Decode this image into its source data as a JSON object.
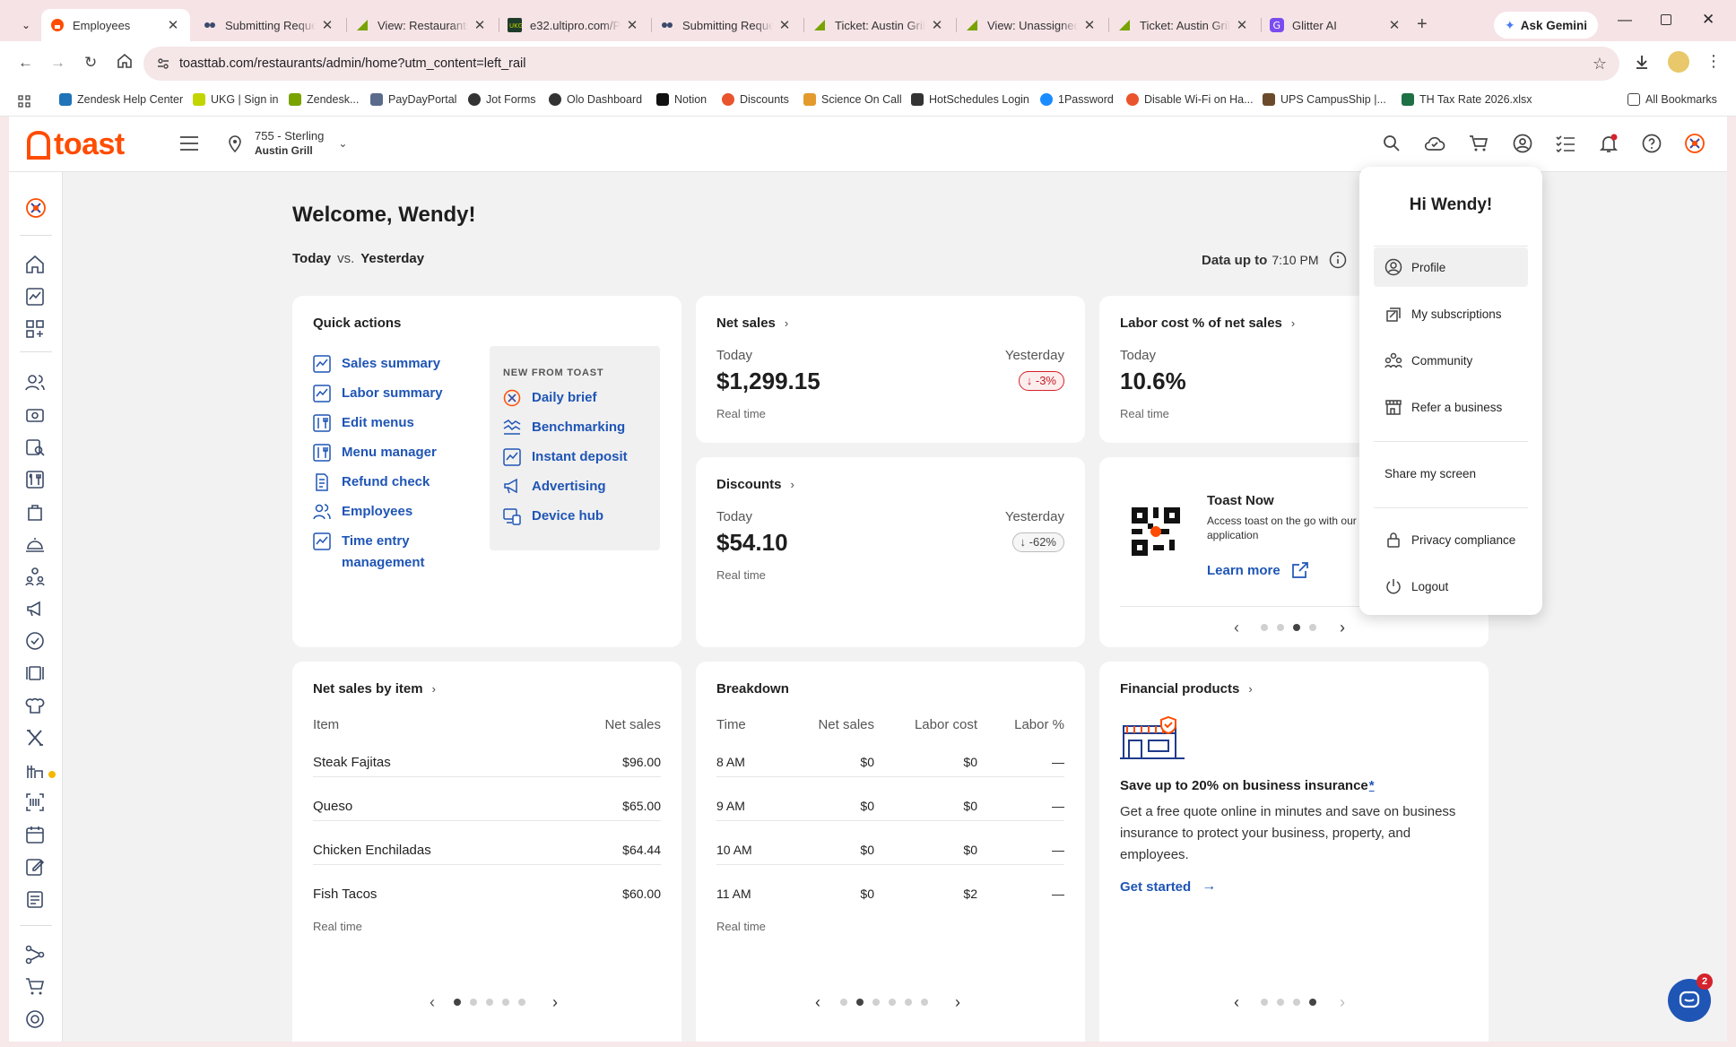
{
  "browser": {
    "tabs": [
      {
        "title": "Employees",
        "icon": "toast-favicon",
        "active": true
      },
      {
        "title": "Submitting Reque",
        "icon": "gear-favicon"
      },
      {
        "title": "View: Restaurants",
        "icon": "zendesk-favicon"
      },
      {
        "title": "e32.ultipro.com/Pi",
        "icon": "ukg-favicon"
      },
      {
        "title": "Submitting Reque",
        "icon": "gear-favicon"
      },
      {
        "title": "Ticket: Austin Grill",
        "icon": "zendesk-favicon"
      },
      {
        "title": "View: Unassigned",
        "icon": "zendesk-favicon"
      },
      {
        "title": "Ticket: Austin Grill",
        "icon": "zendesk-favicon"
      },
      {
        "title": "Glitter AI",
        "icon": "glitter-favicon"
      }
    ],
    "ask_gemini": "Ask Gemini",
    "url": "toasttab.com/restaurants/admin/home?utm_content=left_rail",
    "bookmarks": [
      {
        "label": "Zendesk Help Center",
        "color": "#1f73b7"
      },
      {
        "label": "UKG | Sign in",
        "color": "#c2d500"
      },
      {
        "label": "Zendesk...",
        "color": "#78a300"
      },
      {
        "label": "PayDayPortal",
        "color": "#5a6b8c"
      },
      {
        "label": "Jot Forms",
        "color": "#333333"
      },
      {
        "label": "Olo Dashboard",
        "color": "#333333"
      },
      {
        "label": "Notion",
        "color": "#111111"
      },
      {
        "label": "Discounts",
        "color": "#e9542c"
      },
      {
        "label": "Science On Call",
        "color": "#e39b2d"
      },
      {
        "label": "HotSchedules Login",
        "color": "#333333"
      },
      {
        "label": "1Password",
        "color": "#1a8cff"
      },
      {
        "label": "Disable Wi-Fi on Ha...",
        "color": "#e9542c"
      },
      {
        "label": "UPS CampusShip |...",
        "color": "#6b4a2b"
      },
      {
        "label": "TH Tax Rate 2026.xlsx",
        "color": "#1e7145"
      }
    ],
    "all_bookmarks": "All Bookmarks"
  },
  "header": {
    "logo": "toast",
    "location_line1": "755 - Sterling",
    "location_line2": "Austin Grill"
  },
  "dashboard": {
    "welcome": "Welcome, Wendy!",
    "compare_today": "Today",
    "compare_vs": "vs.",
    "compare_yesterday": "Yesterday",
    "data_up_to_label": "Data up to",
    "data_up_to_time": "7:10 PM",
    "quick_actions": {
      "title": "Quick actions",
      "items": [
        "Sales summary",
        "Labor summary",
        "Edit menus",
        "Menu manager",
        "Refund check",
        "Employees",
        "Time entry management"
      ],
      "new_from_toast_label": "NEW FROM TOAST",
      "new_items": [
        "Daily brief",
        "Benchmarking",
        "Instant deposit",
        "Advertising",
        "Device hub"
      ]
    },
    "net_sales": {
      "title": "Net sales",
      "today_label": "Today",
      "yesterday_label": "Yesterday",
      "value": "$1,299.15",
      "change": "↓ -3%",
      "note": "Real time"
    },
    "labor_cost": {
      "title": "Labor cost % of net sales",
      "today_label": "Today",
      "value": "10.6%",
      "note": "Real time"
    },
    "discounts": {
      "title": "Discounts",
      "today_label": "Today",
      "yesterday_label": "Yesterday",
      "value": "$54.10",
      "change": "↓ -62%",
      "note": "Real time"
    },
    "toast_now": {
      "title": "Toast Now",
      "desc": "Access toast on the go with our application",
      "link": "Learn more",
      "active_dot": 2,
      "dot_count": 4
    },
    "net_sales_by_item": {
      "title": "Net sales by item",
      "col1": "Item",
      "col2": "Net sales",
      "rows": [
        {
          "item": "Steak Fajitas",
          "sales": "$96.00"
        },
        {
          "item": "Queso",
          "sales": "$65.00"
        },
        {
          "item": "Chicken Enchiladas",
          "sales": "$64.44"
        },
        {
          "item": "Fish Tacos",
          "sales": "$60.00"
        }
      ],
      "note": "Real time",
      "active_dot": 0,
      "dot_count": 5
    },
    "breakdown": {
      "title": "Breakdown",
      "cols": [
        "Time",
        "Net sales",
        "Labor cost",
        "Labor %"
      ],
      "rows": [
        {
          "time": "8 AM",
          "sales": "$0",
          "labor": "$0",
          "pct": "—"
        },
        {
          "time": "9 AM",
          "sales": "$0",
          "labor": "$0",
          "pct": "—"
        },
        {
          "time": "10 AM",
          "sales": "$0",
          "labor": "$0",
          "pct": "—"
        },
        {
          "time": "11 AM",
          "sales": "$0",
          "labor": "$2",
          "pct": "—"
        }
      ],
      "note": "Real time",
      "active_dot": 1,
      "dot_count": 6
    },
    "financial": {
      "title": "Financial products",
      "headline": "Save up to 20% on business insurance",
      "asterisk": "*",
      "body": "Get a free quote online in minutes and save on business insurance to protect your business, property, and employees.",
      "cta": "Get started",
      "active_dot": 3,
      "dot_count": 4
    }
  },
  "user_menu": {
    "greeting": "Hi Wendy!",
    "items": [
      "Profile",
      "My subscriptions",
      "Community",
      "Refer a business"
    ],
    "share": "Share my screen",
    "privacy": "Privacy compliance",
    "logout": "Logout"
  },
  "chat_badge": "2",
  "colors": {
    "brand": "#ff4c00",
    "link": "#1f55b5",
    "alert": "#d4232b"
  }
}
